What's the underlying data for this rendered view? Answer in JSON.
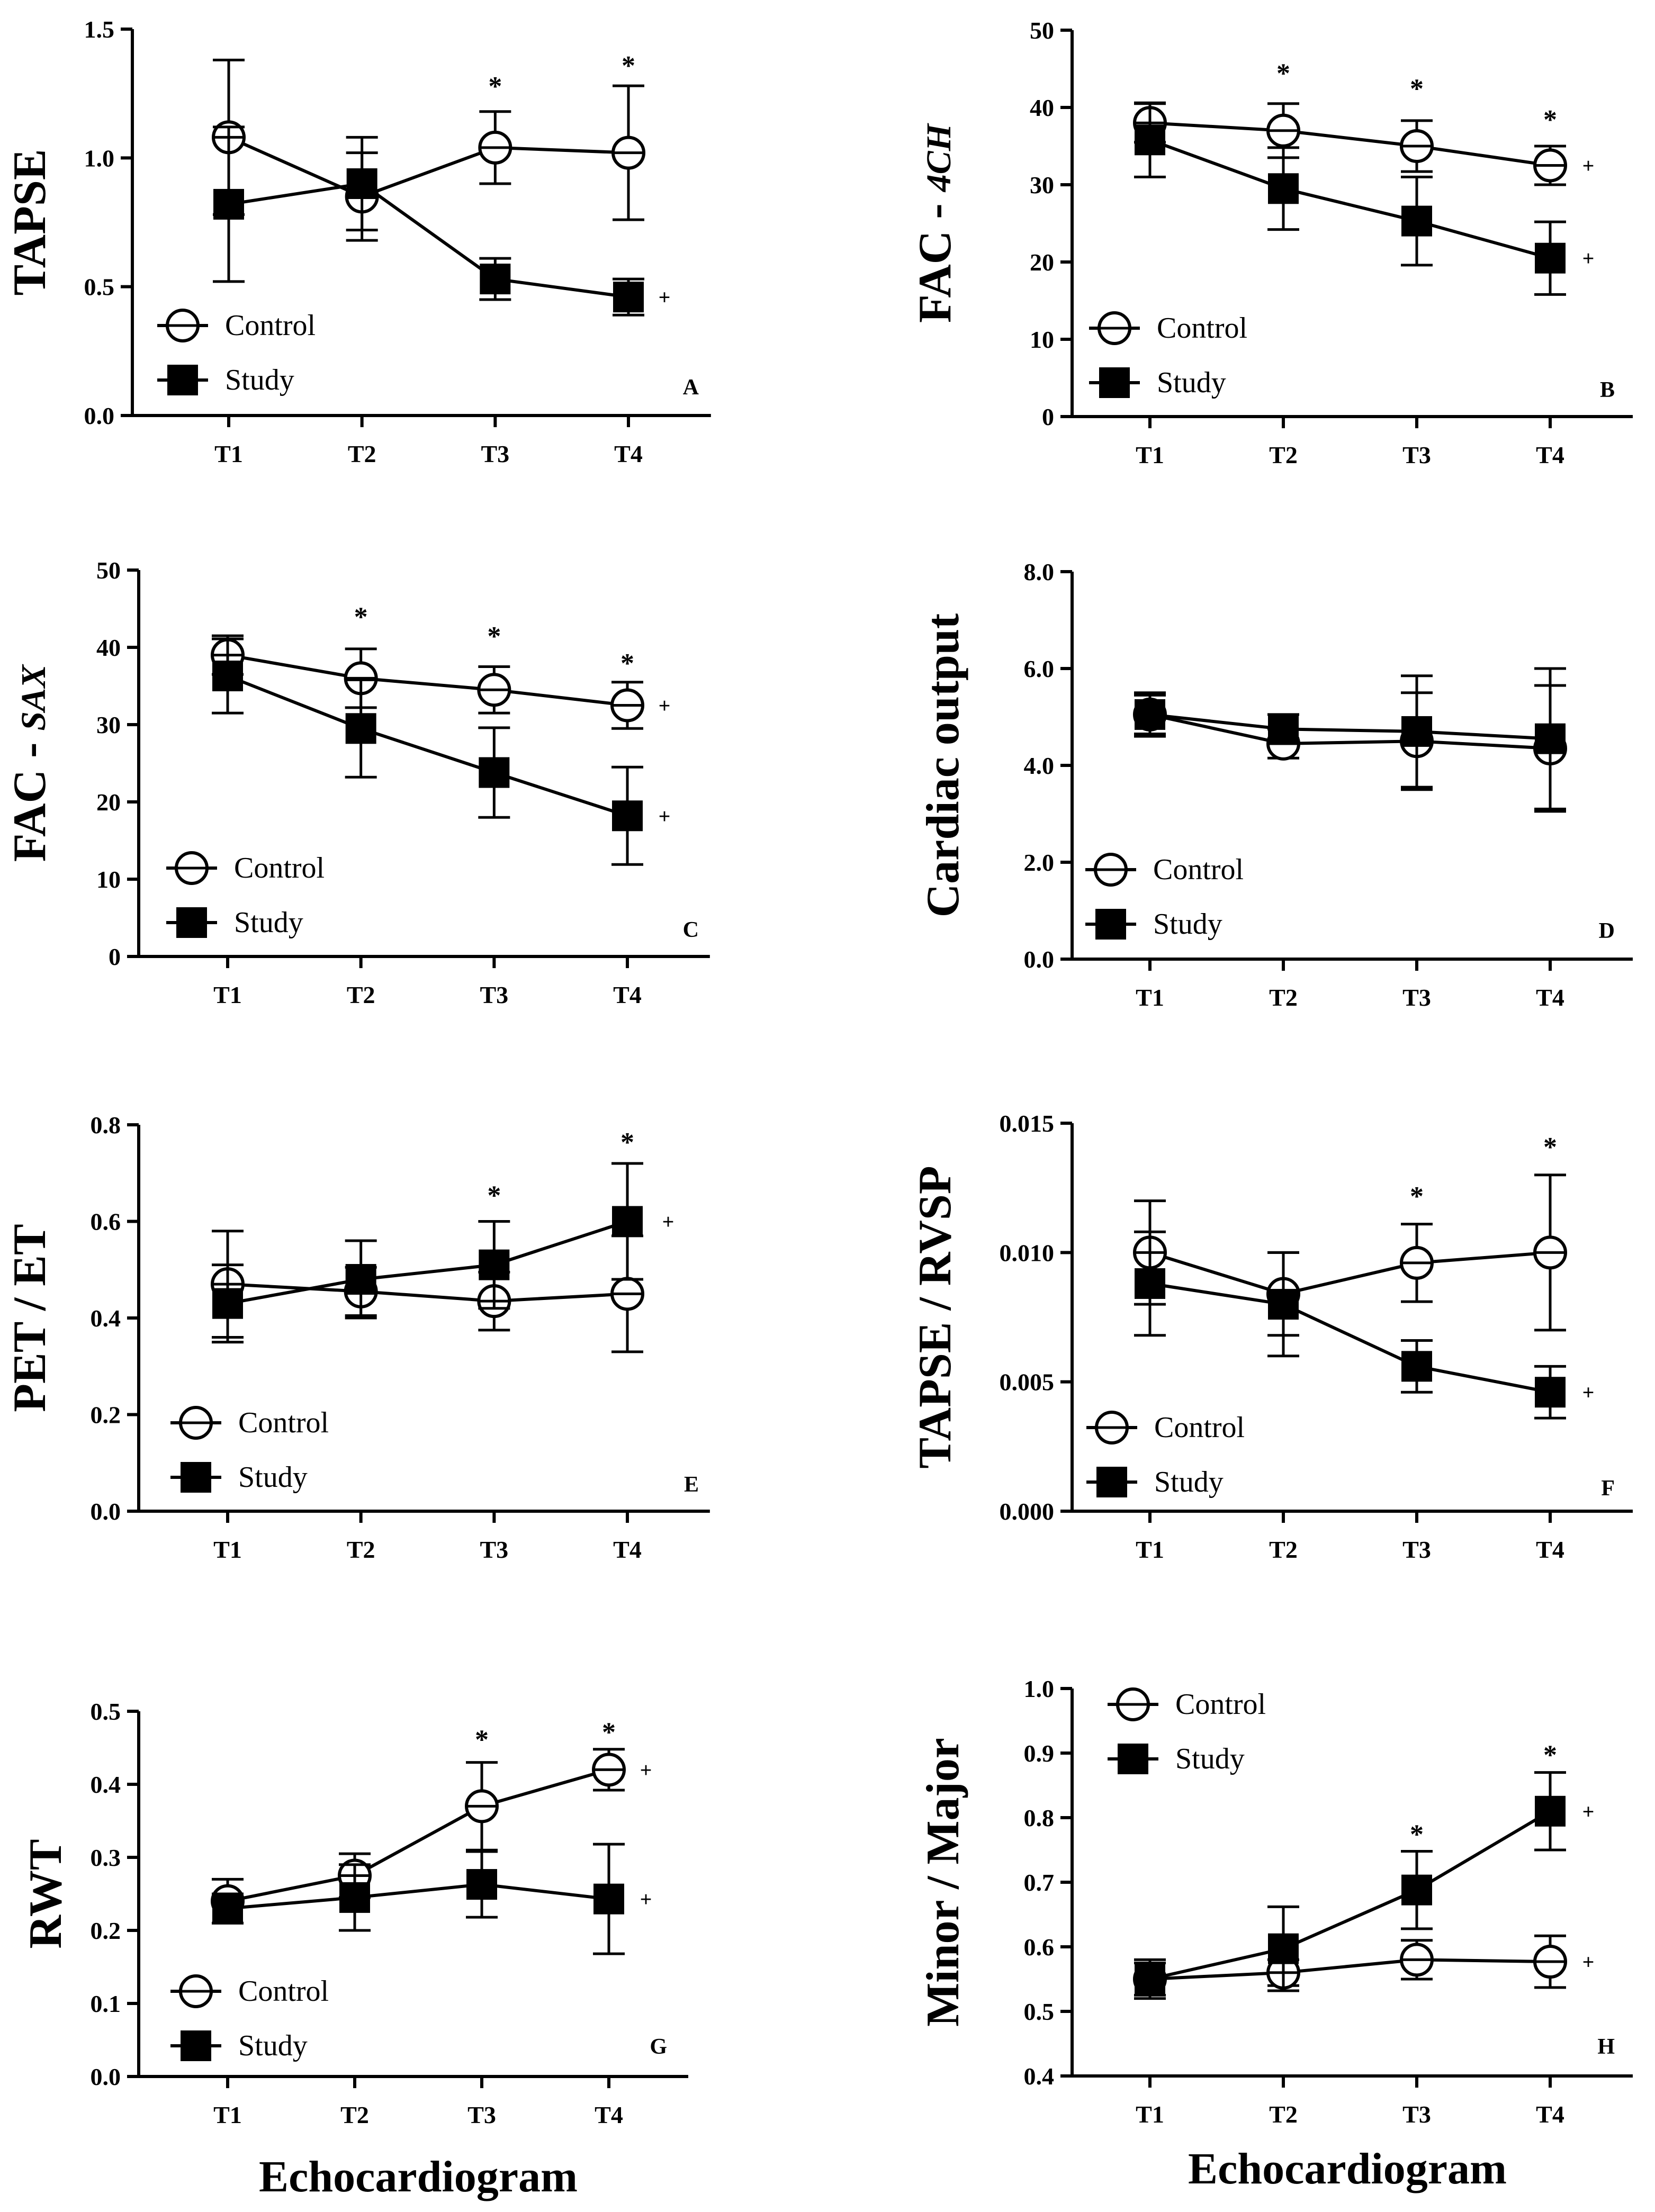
{
  "figure": {
    "xlabel_left": "Echocardiogram",
    "xlabel_right": "Echocardiogram"
  },
  "legend": {
    "control": "Control",
    "study": "Study"
  },
  "chart_data": [
    {
      "id": "A",
      "type": "line",
      "panel_label": "A",
      "ylabel": "TAPSE",
      "ylabel_italic": "",
      "categories": [
        "T1",
        "T2",
        "T3",
        "T4"
      ],
      "ylim": [
        0,
        1.5
      ],
      "yticks": [
        "0.0",
        "0.5",
        "1.0",
        "1.5"
      ],
      "series": [
        {
          "name": "Control",
          "marker": "open-circle",
          "values": [
            1.08,
            0.85,
            1.04,
            1.02
          ],
          "err": [
            0.3,
            0.17,
            0.14,
            0.26
          ]
        },
        {
          "name": "Study",
          "marker": "filled-square",
          "values": [
            0.82,
            0.9,
            0.53,
            0.46
          ],
          "err": [
            0.3,
            0.18,
            0.08,
            0.07
          ]
        }
      ],
      "stars": [
        {
          "category": "T3",
          "y": 1.28
        },
        {
          "category": "T4",
          "y": 1.36
        }
      ],
      "plus": [
        {
          "series": "Study",
          "y": 0.46
        }
      ]
    },
    {
      "id": "B",
      "type": "line",
      "panel_label": "B",
      "ylabel": "FAC - ",
      "ylabel_italic": "4CH",
      "categories": [
        "T1",
        "T2",
        "T3",
        "T4"
      ],
      "ylim": [
        0,
        50
      ],
      "yticks": [
        "0",
        "10",
        "20",
        "30",
        "40",
        "50"
      ],
      "series": [
        {
          "name": "Control",
          "marker": "open-circle",
          "values": [
            38,
            37,
            35,
            32.5
          ],
          "err": [
            2.5,
            3.5,
            3.3,
            2.5
          ]
        },
        {
          "name": "Study",
          "marker": "filled-square",
          "values": [
            35.8,
            29.5,
            25.3,
            20.5
          ],
          "err": [
            4.8,
            5.3,
            5.7,
            4.7
          ]
        }
      ],
      "stars": [
        {
          "category": "T2",
          "y": 44.5
        },
        {
          "category": "T3",
          "y": 42.5
        },
        {
          "category": "T4",
          "y": 38.5
        }
      ],
      "plus": [
        {
          "series": "Control",
          "y": 32.5
        },
        {
          "series": "Study",
          "y": 20.5
        }
      ]
    },
    {
      "id": "C",
      "type": "line",
      "panel_label": "C",
      "ylabel": "FAC - ",
      "ylabel_italic": "SAX",
      "categories": [
        "T1",
        "T2",
        "T3",
        "T4"
      ],
      "ylim": [
        0,
        50
      ],
      "yticks": [
        "0",
        "10",
        "20",
        "30",
        "40",
        "50"
      ],
      "series": [
        {
          "name": "Control",
          "marker": "open-circle",
          "values": [
            39,
            36,
            34.5,
            32.5
          ],
          "err": [
            2.5,
            3.8,
            3.0,
            3.0
          ]
        },
        {
          "name": "Study",
          "marker": "filled-square",
          "values": [
            36.3,
            29.5,
            23.8,
            18.2
          ],
          "err": [
            4.8,
            6.3,
            5.8,
            6.3
          ]
        }
      ],
      "stars": [
        {
          "category": "T2",
          "y": 44
        },
        {
          "category": "T3",
          "y": 41.5
        },
        {
          "category": "T4",
          "y": 38
        }
      ],
      "plus": [
        {
          "series": "Control",
          "y": 32.5
        },
        {
          "series": "Study",
          "y": 18.2
        }
      ]
    },
    {
      "id": "D",
      "type": "line",
      "panel_label": "D",
      "ylabel": "Cardiac output",
      "ylabel_italic": "",
      "categories": [
        "T1",
        "T2",
        "T3",
        "T4"
      ],
      "ylim": [
        0,
        8
      ],
      "yticks": [
        "0.0",
        "2.0",
        "4.0",
        "6.0",
        "8.0"
      ],
      "series": [
        {
          "name": "Control",
          "marker": "open-circle",
          "values": [
            5.05,
            4.45,
            4.5,
            4.35
          ],
          "err": [
            0.45,
            0.3,
            1.0,
            1.3
          ]
        },
        {
          "name": "Study",
          "marker": "filled-square",
          "values": [
            5.05,
            4.75,
            4.7,
            4.55
          ],
          "err": [
            0.4,
            0.3,
            1.15,
            1.45
          ]
        }
      ],
      "stars": [],
      "plus": []
    },
    {
      "id": "E",
      "type": "line",
      "panel_label": "E",
      "ylabel": "PET / ET",
      "ylabel_italic": "",
      "categories": [
        "T1",
        "T2",
        "T3",
        "T4"
      ],
      "ylim": [
        0,
        0.8
      ],
      "yticks": [
        "0.0",
        "0.2",
        "0.4",
        "0.6",
        "0.8"
      ],
      "series": [
        {
          "name": "Control",
          "marker": "open-circle",
          "values": [
            0.47,
            0.455,
            0.435,
            0.45
          ],
          "err": [
            0.11,
            0.05,
            0.06,
            0.12
          ]
        },
        {
          "name": "Study",
          "marker": "filled-square",
          "values": [
            0.43,
            0.48,
            0.51,
            0.6
          ],
          "err": [
            0.08,
            0.08,
            0.09,
            0.12
          ]
        }
      ],
      "stars": [
        {
          "category": "T3",
          "y": 0.655
        },
        {
          "category": "T4",
          "y": 0.765
        }
      ],
      "plus": [
        {
          "series": "Study",
          "y": 0.6
        }
      ]
    },
    {
      "id": "F",
      "type": "line",
      "panel_label": "F",
      "ylabel": "TAPSE / RVSP",
      "ylabel_italic": "",
      "categories": [
        "T1",
        "T2",
        "T3",
        "T4"
      ],
      "ylim": [
        0,
        0.015
      ],
      "yticks": [
        "0.000",
        "0.005",
        "0.010",
        "0.015"
      ],
      "series": [
        {
          "name": "Control",
          "marker": "open-circle",
          "values": [
            0.01,
            0.0084,
            0.0096,
            0.01
          ],
          "err": [
            0.002,
            0.0016,
            0.0015,
            0.003
          ]
        },
        {
          "name": "Study",
          "marker": "filled-square",
          "values": [
            0.0088,
            0.008,
            0.0056,
            0.0046
          ],
          "err": [
            0.002,
            0.002,
            0.001,
            0.001
          ]
        }
      ],
      "stars": [
        {
          "category": "T3",
          "y": 0.0122
        },
        {
          "category": "T4",
          "y": 0.0141
        }
      ],
      "plus": [
        {
          "series": "Study",
          "y": 0.0046
        }
      ]
    },
    {
      "id": "G",
      "type": "line",
      "panel_label": "G",
      "ylabel": "RWT",
      "ylabel_italic": "",
      "categories": [
        "T1",
        "T2",
        "T3",
        "T4"
      ],
      "ylim": [
        0,
        0.5
      ],
      "yticks": [
        "0.0",
        "0.1",
        "0.2",
        "0.3",
        "0.4",
        "0.5"
      ],
      "series": [
        {
          "name": "Control",
          "marker": "open-circle",
          "values": [
            0.24,
            0.275,
            0.37,
            0.42
          ],
          "err": [
            0.03,
            0.03,
            0.06,
            0.028
          ]
        },
        {
          "name": "Study",
          "marker": "filled-square",
          "values": [
            0.23,
            0.245,
            0.263,
            0.243
          ],
          "err": [
            0.02,
            0.045,
            0.045,
            0.075
          ]
        }
      ],
      "stars": [
        {
          "category": "T3",
          "y": 0.462
        },
        {
          "category": "T4",
          "y": 0.472
        }
      ],
      "plus": [
        {
          "series": "Control",
          "y": 0.42
        },
        {
          "series": "Study",
          "y": 0.243
        }
      ]
    },
    {
      "id": "H",
      "type": "line",
      "panel_label": "H",
      "ylabel": "Minor / Major",
      "ylabel_italic": "",
      "categories": [
        "T1",
        "T2",
        "T3",
        "T4"
      ],
      "ylim": [
        0.4,
        1.0
      ],
      "yticks": [
        "0.4",
        "0.5",
        "0.6",
        "0.7",
        "0.8",
        "0.9",
        "1.0"
      ],
      "series": [
        {
          "name": "Control",
          "marker": "open-circle",
          "values": [
            0.55,
            0.56,
            0.58,
            0.577
          ],
          "err": [
            0.025,
            0.02,
            0.03,
            0.04
          ]
        },
        {
          "name": "Study",
          "marker": "filled-square",
          "values": [
            0.55,
            0.597,
            0.688,
            0.81
          ],
          "err": [
            0.03,
            0.065,
            0.06,
            0.06
          ]
        }
      ],
      "stars": [
        {
          "category": "T3",
          "y": 0.775
        },
        {
          "category": "T4",
          "y": 0.898
        }
      ],
      "plus": [
        {
          "series": "Control",
          "y": 0.577
        },
        {
          "series": "Study",
          "y": 0.81
        }
      ]
    }
  ]
}
